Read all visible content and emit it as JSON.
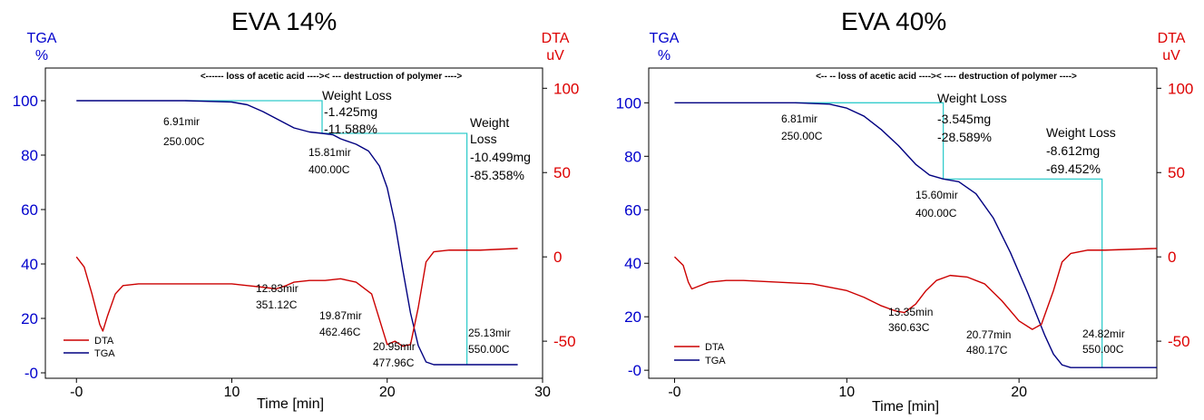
{
  "chart_data": [
    {
      "type": "line",
      "title": "EVA 14%",
      "xlabel": "Time  [min]",
      "ylabel_left": [
        "TGA",
        "%"
      ],
      "ylabel_right": [
        "DTA",
        "uV"
      ],
      "xlim": [
        -2,
        30
      ],
      "ylim_left": [
        -2,
        112
      ],
      "ylim_right": [
        -72,
        112
      ],
      "x_ticks": [
        "-0",
        "10",
        "20",
        "30"
      ],
      "x_tick_values": [
        0,
        10,
        20,
        30
      ],
      "y_ticks_left": [
        "-0",
        "20",
        "40",
        "60",
        "80",
        "100"
      ],
      "y_tick_values_left": [
        0,
        20,
        40,
        60,
        80,
        100
      ],
      "y_ticks_right": [
        "100",
        "50",
        "0",
        "-50"
      ],
      "y_tick_values_right": [
        100,
        50,
        0,
        -50
      ],
      "legend": [
        "DTA",
        "TGA"
      ],
      "legend_position": "bottom-left",
      "colors": {
        "tga": "#000080",
        "dta": "#cc0000",
        "step": "#33cccc",
        "left_axis": "#0000cc",
        "right_axis": "#dd0000"
      },
      "header_text": "<------ loss of acetic acid ---->< --- destruction of polymer ---->",
      "series": [
        {
          "name": "TGA",
          "x": [
            0,
            5,
            7,
            10,
            11,
            12,
            13,
            14,
            15,
            15.81,
            16.5,
            17,
            18,
            18.8,
            19.5,
            20,
            20.5,
            21,
            21.5,
            22,
            22.5,
            23,
            24,
            25,
            26,
            28.4
          ],
          "y": [
            100,
            100,
            100,
            99.5,
            98.5,
            96,
            93,
            90,
            88.5,
            88,
            87.5,
            86,
            84,
            81.5,
            76,
            68,
            55,
            38,
            22,
            10,
            4,
            3,
            3,
            3,
            3,
            3
          ]
        },
        {
          "name": "DTA",
          "x": [
            0,
            0.5,
            1,
            1.5,
            1.7,
            2,
            2.5,
            3,
            4,
            6,
            8,
            10,
            11,
            12,
            12.83,
            13.5,
            14,
            15,
            16,
            17,
            18,
            19,
            19.5,
            20,
            20.5,
            21,
            21.5,
            22,
            22.5,
            23,
            24,
            25,
            26,
            28.4
          ],
          "y": [
            0,
            -6,
            -22,
            -40,
            -44,
            -35,
            -22,
            -17,
            -16,
            -16,
            -16,
            -16,
            -17,
            -18,
            -19,
            -17,
            -15,
            -14,
            -14,
            -13,
            -15,
            -22,
            -37,
            -52,
            -50,
            -53,
            -52,
            -30,
            -3,
            3,
            4,
            4,
            4,
            5
          ]
        }
      ],
      "annotations": [
        {
          "lines": [
            "6.91mir",
            "250.00C"
          ]
        },
        {
          "lines": [
            "15.81mir",
            "400.00C"
          ]
        },
        {
          "lines": [
            "12.83mir",
            "351.12C"
          ]
        },
        {
          "lines": [
            "19.87mir",
            "462.46C"
          ]
        },
        {
          "lines": [
            "20.95mir",
            "477.96C"
          ]
        },
        {
          "lines": [
            "25.13mir",
            "550.00C"
          ]
        },
        {
          "lines": [
            "Weight Loss",
            "-1.425mg",
            "-11.588%"
          ]
        },
        {
          "lines": [
            "Weight",
            "Loss",
            "-10.499mg",
            "-85.358%"
          ]
        }
      ]
    },
    {
      "type": "line",
      "title": "EVA 40%",
      "xlabel": "Time  [min]",
      "ylabel_left": [
        "TGA",
        "%"
      ],
      "ylabel_right": [
        "DTA",
        "uV"
      ],
      "xlim": [
        -1.5,
        28
      ],
      "ylim_left": [
        -3,
        113
      ],
      "ylim_right": [
        -72,
        112
      ],
      "x_ticks": [
        "-0",
        "10",
        "20"
      ],
      "x_tick_values": [
        0,
        10,
        20
      ],
      "y_ticks_left": [
        "-0",
        "20",
        "40",
        "60",
        "80",
        "100"
      ],
      "y_tick_values_left": [
        0,
        20,
        40,
        60,
        80,
        100
      ],
      "y_ticks_right": [
        "100",
        "50",
        "0",
        "-50"
      ],
      "y_tick_values_right": [
        100,
        50,
        0,
        -50
      ],
      "legend": [
        "DTA",
        "TGA"
      ],
      "legend_position": "bottom-left",
      "colors": {
        "tga": "#000080",
        "dta": "#cc0000",
        "step": "#33cccc",
        "left_axis": "#0000cc",
        "right_axis": "#dd0000"
      },
      "header_text": "<-- -- loss of acetic acid ---->< ---- destruction of polymer ---->",
      "series": [
        {
          "name": "TGA",
          "x": [
            0,
            5,
            7,
            9,
            10,
            11,
            12,
            13,
            14,
            14.8,
            15.6,
            16.5,
            17.5,
            18.5,
            19.5,
            20.5,
            21.5,
            22,
            22.5,
            23,
            25,
            28
          ],
          "y": [
            100,
            100,
            100,
            99.5,
            98,
            95,
            90,
            84,
            77,
            73,
            71.5,
            70.5,
            66,
            57,
            44,
            29,
            13,
            6,
            2,
            1,
            1,
            1
          ]
        },
        {
          "name": "DTA",
          "x": [
            0,
            0.5,
            0.8,
            1,
            1.5,
            2,
            3,
            4,
            6,
            8,
            10,
            11,
            12,
            12.8,
            13.35,
            14,
            14.6,
            15.2,
            16,
            17,
            18,
            19,
            20,
            20.77,
            21.3,
            22,
            22.5,
            23,
            24,
            25,
            28
          ],
          "y": [
            0,
            -5,
            -15,
            -19,
            -17,
            -15,
            -14,
            -14,
            -15,
            -16,
            -20,
            -24,
            -29,
            -32,
            -33,
            -28,
            -20,
            -14,
            -11,
            -12,
            -16,
            -26,
            -38,
            -43,
            -40,
            -20,
            -3,
            2,
            4,
            4,
            5
          ]
        }
      ],
      "annotations": [
        {
          "lines": [
            "6.81mir",
            "250.00C"
          ]
        },
        {
          "lines": [
            "15.60mir",
            "400.00C"
          ]
        },
        {
          "lines": [
            "13.35min",
            "360.63C"
          ]
        },
        {
          "lines": [
            "20.77min",
            "480.17C"
          ]
        },
        {
          "lines": [
            "24.82mir",
            "550.00C"
          ]
        },
        {
          "lines": [
            "Weight Loss",
            "-3.545mg",
            "-28.589%"
          ]
        },
        {
          "lines": [
            "Weight Loss",
            "-8.612mg",
            "-69.452%"
          ]
        }
      ]
    }
  ]
}
